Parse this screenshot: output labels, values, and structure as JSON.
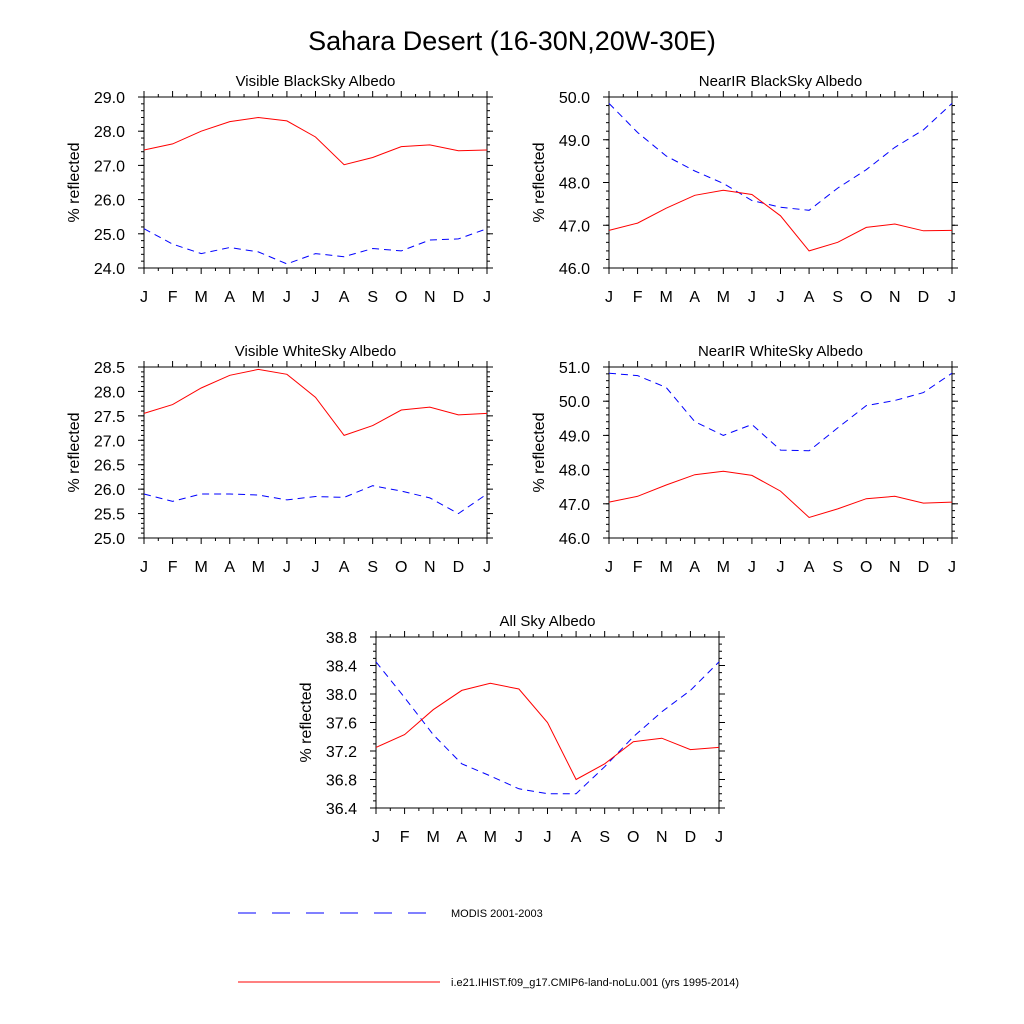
{
  "figure": {
    "title": "Sahara Desert (16-30N,20W-30E)"
  },
  "legend": [
    {
      "label": "MODIS 2001-2003",
      "color": "#0000ff",
      "dashed": true
    },
    {
      "label": "i.e21.IHIST.f09_g17.CMIP6-land-noLu.001 (yrs 1995-2014)",
      "color": "#ff0000",
      "dashed": false
    }
  ],
  "chart_data": [
    {
      "type": "line",
      "title": "Visible BlackSky Albedo",
      "ylabel": "% reflected",
      "categories": [
        "J",
        "F",
        "M",
        "A",
        "M",
        "J",
        "J",
        "A",
        "S",
        "O",
        "N",
        "D",
        "J"
      ],
      "ylim": [
        24.0,
        29.0
      ],
      "yticks": [
        24.0,
        25.0,
        26.0,
        27.0,
        28.0,
        29.0
      ],
      "yminor": 0.2,
      "series": [
        {
          "name": "MODIS 2001-2003",
          "color": "#0000ff",
          "dashed": true,
          "values": [
            25.15,
            24.7,
            24.42,
            24.6,
            24.47,
            24.12,
            24.42,
            24.33,
            24.57,
            24.5,
            24.82,
            24.85,
            25.15
          ]
        },
        {
          "name": "i.e21.IHIST.f09_g17.CMIP6-land-noLu.001 (yrs 1995-2014)",
          "color": "#ff0000",
          "dashed": false,
          "values": [
            27.45,
            27.63,
            28.0,
            28.28,
            28.4,
            28.3,
            27.83,
            27.02,
            27.23,
            27.55,
            27.6,
            27.43,
            27.45
          ]
        }
      ]
    },
    {
      "type": "line",
      "title": "NearIR BlackSky Albedo",
      "ylabel": "% reflected",
      "categories": [
        "J",
        "F",
        "M",
        "A",
        "M",
        "J",
        "J",
        "A",
        "S",
        "O",
        "N",
        "D",
        "J"
      ],
      "ylim": [
        46.0,
        50.0
      ],
      "yticks": [
        46.0,
        47.0,
        48.0,
        49.0,
        50.0
      ],
      "yminor": 0.2,
      "series": [
        {
          "name": "MODIS 2001-2003",
          "color": "#0000ff",
          "dashed": true,
          "values": [
            49.85,
            49.17,
            48.62,
            48.27,
            47.98,
            47.58,
            47.42,
            47.35,
            47.87,
            48.3,
            48.82,
            49.23,
            49.85
          ]
        },
        {
          "name": "i.e21.IHIST.f09_g17.CMIP6-land-noLu.001 (yrs 1995-2014)",
          "color": "#ff0000",
          "dashed": false,
          "values": [
            46.88,
            47.05,
            47.4,
            47.7,
            47.82,
            47.72,
            47.22,
            46.4,
            46.6,
            46.95,
            47.03,
            46.87,
            46.88
          ]
        }
      ]
    },
    {
      "type": "line",
      "title": "Visible WhiteSky Albedo",
      "ylabel": "% reflected",
      "categories": [
        "J",
        "F",
        "M",
        "A",
        "M",
        "J",
        "J",
        "A",
        "S",
        "O",
        "N",
        "D",
        "J"
      ],
      "ylim": [
        25.0,
        28.5
      ],
      "yticks": [
        25.0,
        25.5,
        26.0,
        26.5,
        27.0,
        27.5,
        28.0,
        28.5
      ],
      "yminor": 0.1,
      "series": [
        {
          "name": "MODIS 2001-2003",
          "color": "#0000ff",
          "dashed": true,
          "values": [
            25.9,
            25.75,
            25.9,
            25.9,
            25.88,
            25.78,
            25.85,
            25.83,
            26.07,
            25.96,
            25.82,
            25.5,
            25.9
          ]
        },
        {
          "name": "i.e21.IHIST.f09_g17.CMIP6-land-noLu.001 (yrs 1995-2014)",
          "color": "#ff0000",
          "dashed": false,
          "values": [
            27.55,
            27.73,
            28.07,
            28.33,
            28.45,
            28.35,
            27.88,
            27.1,
            27.3,
            27.62,
            27.68,
            27.52,
            27.55
          ]
        }
      ]
    },
    {
      "type": "line",
      "title": "NearIR WhiteSky Albedo",
      "ylabel": "% reflected",
      "categories": [
        "J",
        "F",
        "M",
        "A",
        "M",
        "J",
        "J",
        "A",
        "S",
        "O",
        "N",
        "D",
        "J"
      ],
      "ylim": [
        46.0,
        51.0
      ],
      "yticks": [
        46.0,
        47.0,
        48.0,
        49.0,
        50.0,
        51.0
      ],
      "yminor": 0.2,
      "series": [
        {
          "name": "MODIS 2001-2003",
          "color": "#0000ff",
          "dashed": true,
          "values": [
            50.82,
            50.75,
            50.4,
            49.4,
            49.0,
            49.32,
            48.57,
            48.55,
            49.22,
            49.87,
            50.02,
            50.25,
            50.82
          ]
        },
        {
          "name": "i.e21.IHIST.f09_g17.CMIP6-land-noLu.001 (yrs 1995-2014)",
          "color": "#ff0000",
          "dashed": false,
          "values": [
            47.05,
            47.22,
            47.55,
            47.85,
            47.95,
            47.83,
            47.37,
            46.6,
            46.85,
            47.15,
            47.22,
            47.02,
            47.05
          ]
        }
      ]
    },
    {
      "type": "line",
      "title": "All Sky Albedo",
      "ylabel": "% reflected",
      "categories": [
        "J",
        "F",
        "M",
        "A",
        "M",
        "J",
        "J",
        "A",
        "S",
        "O",
        "N",
        "D",
        "J"
      ],
      "ylim": [
        36.4,
        38.8
      ],
      "yticks": [
        36.4,
        36.8,
        37.2,
        37.6,
        38.0,
        38.4,
        38.8
      ],
      "yminor": 0.1,
      "series": [
        {
          "name": "MODIS 2001-2003",
          "color": "#0000ff",
          "dashed": true,
          "values": [
            38.45,
            37.95,
            37.43,
            37.02,
            36.85,
            36.67,
            36.6,
            36.6,
            36.98,
            37.4,
            37.75,
            38.05,
            38.45
          ]
        },
        {
          "name": "i.e21.IHIST.f09_g17.CMIP6-land-noLu.001 (yrs 1995-2014)",
          "color": "#ff0000",
          "dashed": false,
          "values": [
            37.25,
            37.43,
            37.78,
            38.05,
            38.15,
            38.07,
            37.6,
            36.8,
            37.02,
            37.33,
            37.38,
            37.22,
            37.25
          ]
        }
      ]
    }
  ]
}
